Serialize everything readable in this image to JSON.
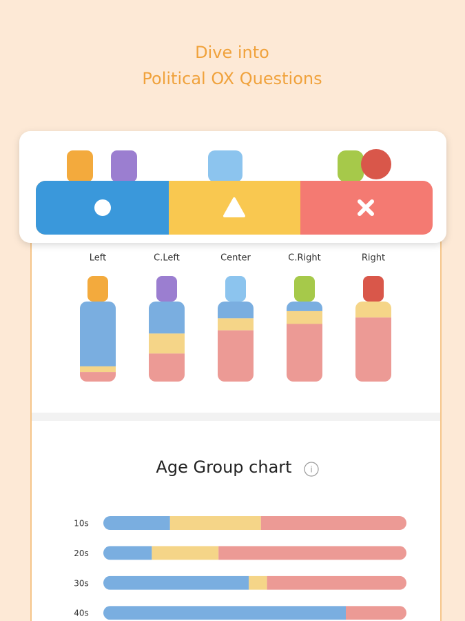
{
  "header": {
    "title_line1": "Dive into",
    "title_line2": "Political OX Questions"
  },
  "chart_data": [
    {
      "type": "stacked-column",
      "categories": [
        "Left",
        "C.Left",
        "Center",
        "C.Right",
        "Right"
      ],
      "series": [
        {
          "color": "#7aaee0",
          "values": [
            81,
            40,
            21,
            12,
            0
          ]
        },
        {
          "color": "#f5d588",
          "values": [
            7,
            25,
            15,
            16,
            20
          ]
        },
        {
          "color": "#ec9a95",
          "values": [
            12,
            35,
            64,
            72,
            80
          ]
        }
      ]
    },
    {
      "type": "stacked-bar",
      "title": "Age Group chart",
      "categories": [
        "10s",
        "20s",
        "30s",
        "40s"
      ],
      "series": [
        {
          "color": "#7aaee0",
          "values": [
            22,
            16,
            48,
            80
          ]
        },
        {
          "color": "#f5d588",
          "values": [
            30,
            22,
            6,
            0
          ]
        },
        {
          "color": "#ec9a95",
          "values": [
            48,
            62,
            46,
            20
          ]
        }
      ]
    }
  ]
}
